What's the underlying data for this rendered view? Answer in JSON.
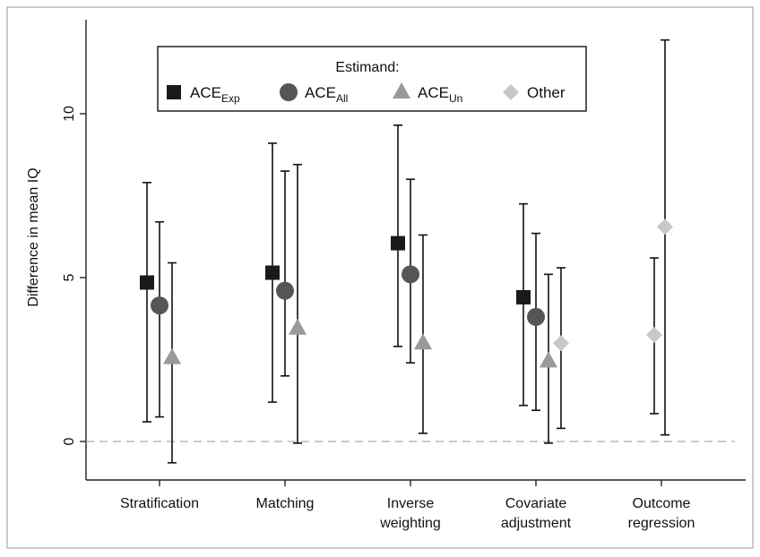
{
  "chart_data": {
    "type": "scatter",
    "subtype": "point-with-error-bars",
    "title": "",
    "xlabel": "",
    "ylabel": "Difference in mean IQ",
    "ylim": [
      -1.2,
      12.5
    ],
    "yticks": [
      0,
      5,
      10
    ],
    "grid": false,
    "reference_line": {
      "y": 0,
      "style": "dashed"
    },
    "legend": {
      "title": "Estimand:",
      "position": "top-left-inside",
      "entries": [
        {
          "key": "exp",
          "base": "ACE",
          "sub": "Exp",
          "marker": "square",
          "color": "#1a1a1a"
        },
        {
          "key": "all",
          "base": "ACE",
          "sub": "All",
          "marker": "circle",
          "color": "#555555"
        },
        {
          "key": "un",
          "base": "ACE",
          "sub": "Un",
          "marker": "triangle",
          "color": "#999999"
        },
        {
          "key": "other",
          "base": "Other",
          "sub": "",
          "marker": "diamond",
          "color": "#c8c8c8"
        }
      ]
    },
    "categories": [
      {
        "lines": [
          "Stratification"
        ]
      },
      {
        "lines": [
          "Matching"
        ]
      },
      {
        "lines": [
          "Inverse",
          "weighting"
        ]
      },
      {
        "lines": [
          "Covariate",
          "adjustment"
        ]
      },
      {
        "lines": [
          "Outcome",
          "regression"
        ]
      }
    ],
    "points": [
      {
        "category": 0,
        "series": "exp",
        "y": 4.85,
        "lo": 0.6,
        "hi": 7.9
      },
      {
        "category": 0,
        "series": "all",
        "y": 4.15,
        "lo": 0.75,
        "hi": 6.7
      },
      {
        "category": 0,
        "series": "un",
        "y": 2.55,
        "lo": -0.65,
        "hi": 5.45
      },
      {
        "category": 1,
        "series": "exp",
        "y": 5.15,
        "lo": 1.2,
        "hi": 9.1
      },
      {
        "category": 1,
        "series": "all",
        "y": 4.6,
        "lo": 2.0,
        "hi": 8.25
      },
      {
        "category": 1,
        "series": "un",
        "y": 3.45,
        "lo": -0.05,
        "hi": 8.45
      },
      {
        "category": 2,
        "series": "exp",
        "y": 6.05,
        "lo": 2.9,
        "hi": 9.65
      },
      {
        "category": 2,
        "series": "all",
        "y": 5.1,
        "lo": 2.4,
        "hi": 8.0
      },
      {
        "category": 2,
        "series": "un",
        "y": 3.0,
        "lo": 0.25,
        "hi": 6.3
      },
      {
        "category": 3,
        "series": "exp",
        "y": 4.4,
        "lo": 1.1,
        "hi": 7.25
      },
      {
        "category": 3,
        "series": "all",
        "y": 3.8,
        "lo": 0.95,
        "hi": 6.35
      },
      {
        "category": 3,
        "series": "un",
        "y": 2.45,
        "lo": -0.05,
        "hi": 5.1
      },
      {
        "category": 3,
        "series": "other",
        "y": 3.0,
        "lo": 0.4,
        "hi": 5.3
      },
      {
        "category": 4,
        "series": "other",
        "y": 3.25,
        "lo": 0.85,
        "hi": 5.6
      },
      {
        "category": 4,
        "series": "other",
        "y": 6.55,
        "lo": 0.2,
        "hi": 12.25
      }
    ]
  }
}
